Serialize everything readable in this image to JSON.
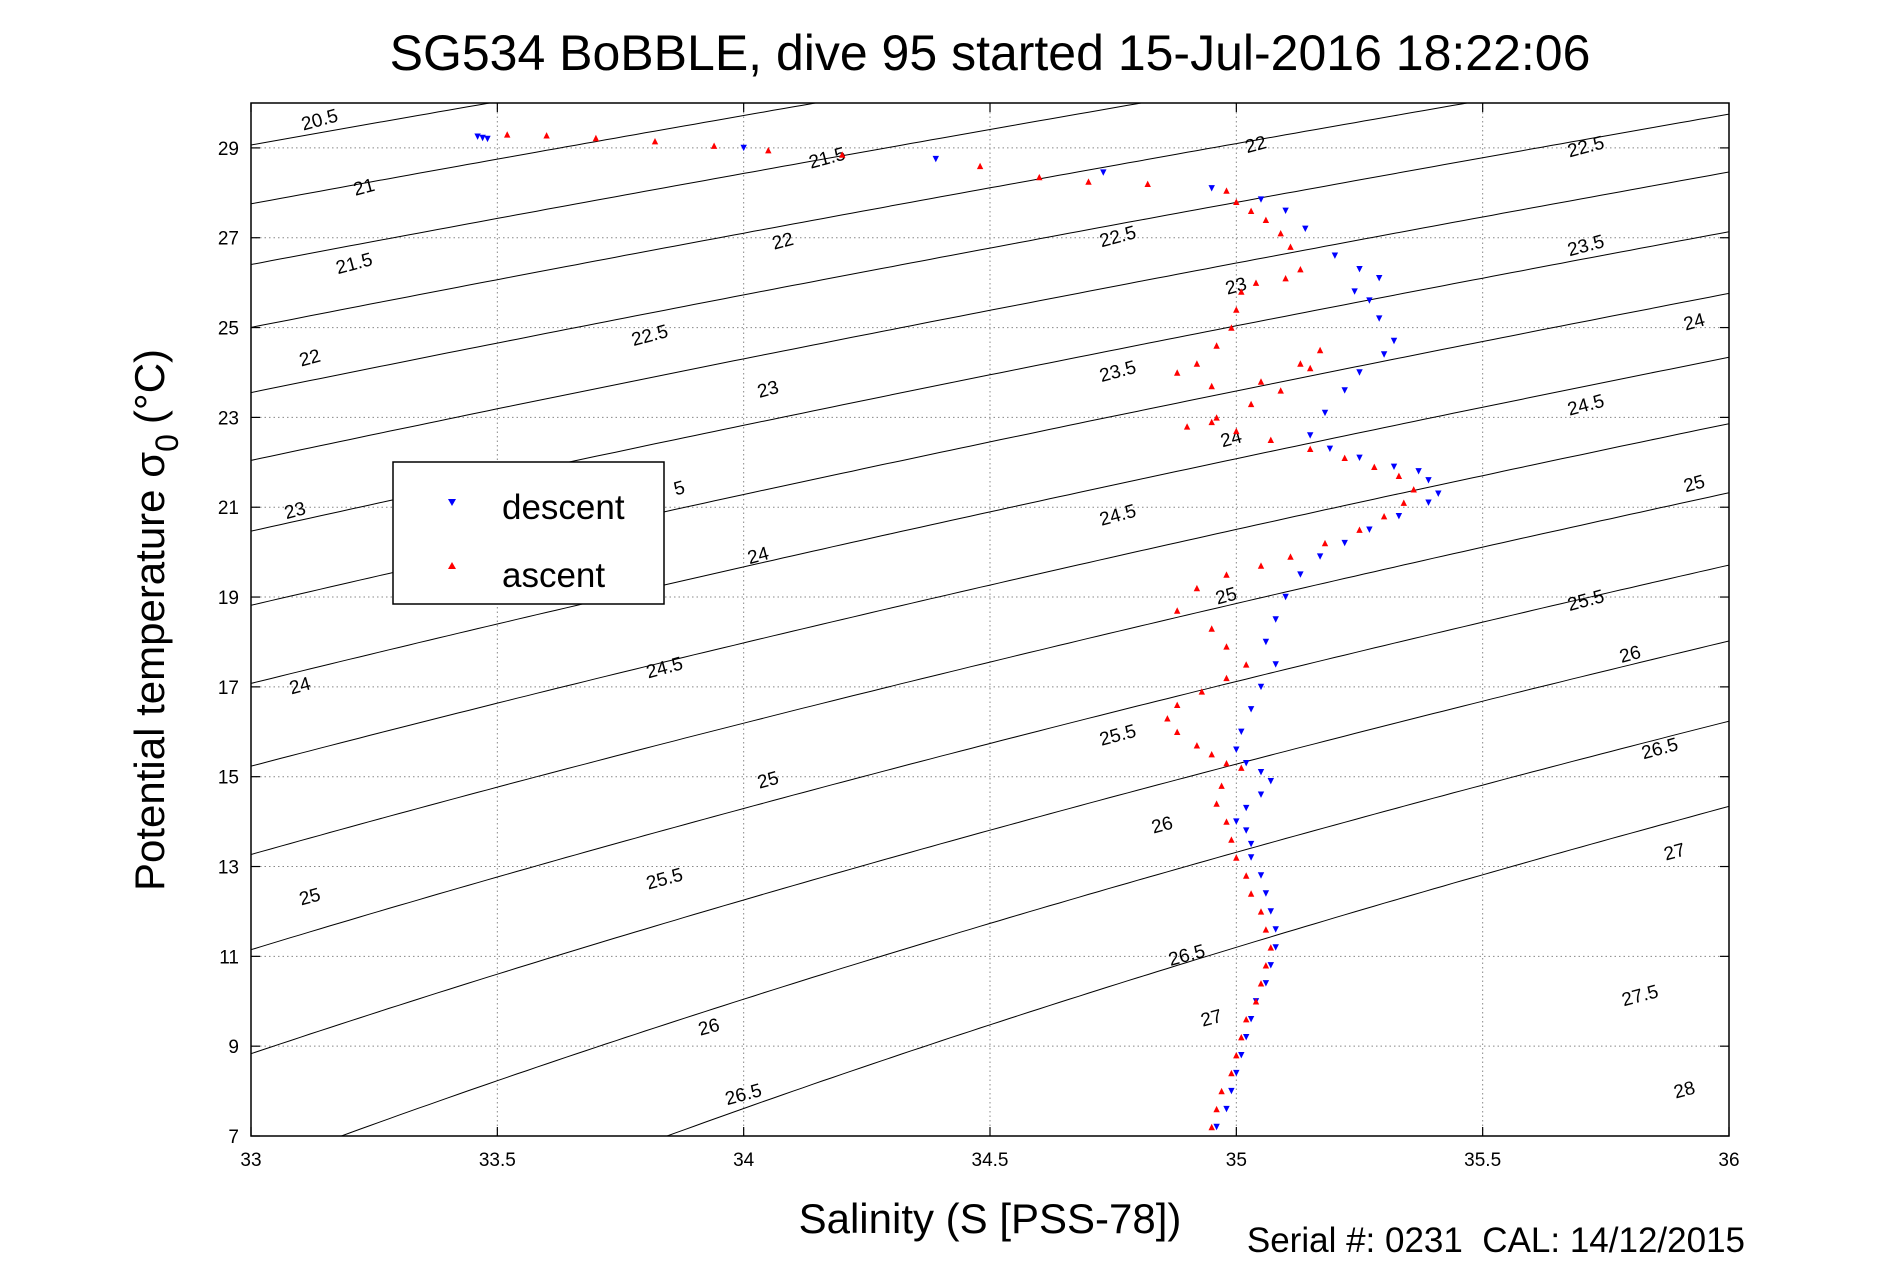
{
  "chart_data": {
    "type": "scatter",
    "title": "SG534 BoBBLE, dive 95 started 15-Jul-2016 18:22:06",
    "xlabel": "Salinity (S [PSS-78])",
    "ylabel_main": "Potential temperature σ",
    "ylabel_sub": "0",
    "ylabel_unit": "(°C)",
    "xlim": [
      33,
      36
    ],
    "ylim": [
      7,
      30
    ],
    "x_ticks": [
      33,
      33.5,
      34,
      34.5,
      35,
      35.5,
      36
    ],
    "x_tick_labels": [
      "33",
      "33.5",
      "34",
      "34.5",
      "35",
      "35.5",
      "36"
    ],
    "y_ticks": [
      7,
      9,
      11,
      13,
      15,
      17,
      19,
      21,
      23,
      25,
      27,
      29
    ],
    "y_tick_labels": [
      "7",
      "9",
      "11",
      "13",
      "15",
      "17",
      "19",
      "21",
      "23",
      "25",
      "27",
      "29"
    ],
    "grid": true,
    "legend_position": "left-middle",
    "series": [
      {
        "name": "descent",
        "color": "#0000ff",
        "marker": "triangle-down",
        "points": [
          [
            33.46,
            29.25
          ],
          [
            33.47,
            29.22
          ],
          [
            33.48,
            29.2
          ],
          [
            34.0,
            29.0
          ],
          [
            34.39,
            28.75
          ],
          [
            34.73,
            28.45
          ],
          [
            34.95,
            28.1
          ],
          [
            35.05,
            27.85
          ],
          [
            35.1,
            27.6
          ],
          [
            35.14,
            27.2
          ],
          [
            35.2,
            26.6
          ],
          [
            35.25,
            26.3
          ],
          [
            35.29,
            26.1
          ],
          [
            35.24,
            25.8
          ],
          [
            35.27,
            25.6
          ],
          [
            35.29,
            25.2
          ],
          [
            35.32,
            24.7
          ],
          [
            35.3,
            24.4
          ],
          [
            35.25,
            24.0
          ],
          [
            35.22,
            23.6
          ],
          [
            35.18,
            23.1
          ],
          [
            35.15,
            22.6
          ],
          [
            35.19,
            22.3
          ],
          [
            35.25,
            22.1
          ],
          [
            35.32,
            21.9
          ],
          [
            35.37,
            21.8
          ],
          [
            35.39,
            21.6
          ],
          [
            35.41,
            21.3
          ],
          [
            35.39,
            21.1
          ],
          [
            35.33,
            20.8
          ],
          [
            35.27,
            20.5
          ],
          [
            35.22,
            20.2
          ],
          [
            35.17,
            19.9
          ],
          [
            35.13,
            19.5
          ],
          [
            35.1,
            19.0
          ],
          [
            35.08,
            18.5
          ],
          [
            35.06,
            18.0
          ],
          [
            35.08,
            17.5
          ],
          [
            35.05,
            17.0
          ],
          [
            35.03,
            16.5
          ],
          [
            35.01,
            16.0
          ],
          [
            35.0,
            15.6
          ],
          [
            35.02,
            15.3
          ],
          [
            35.05,
            15.1
          ],
          [
            35.07,
            14.9
          ],
          [
            35.05,
            14.6
          ],
          [
            35.02,
            14.3
          ],
          [
            35.0,
            14.0
          ],
          [
            35.02,
            13.8
          ],
          [
            35.03,
            13.5
          ],
          [
            35.03,
            13.2
          ],
          [
            35.05,
            12.8
          ],
          [
            35.06,
            12.4
          ],
          [
            35.07,
            12.0
          ],
          [
            35.08,
            11.6
          ],
          [
            35.08,
            11.2
          ],
          [
            35.07,
            10.8
          ],
          [
            35.06,
            10.4
          ],
          [
            35.04,
            10.0
          ],
          [
            35.03,
            9.6
          ],
          [
            35.02,
            9.2
          ],
          [
            35.01,
            8.8
          ],
          [
            35.0,
            8.4
          ],
          [
            34.99,
            8.0
          ],
          [
            34.98,
            7.6
          ],
          [
            34.96,
            7.2
          ]
        ]
      },
      {
        "name": "ascent",
        "color": "#ff0000",
        "marker": "triangle-up",
        "points": [
          [
            33.52,
            29.3
          ],
          [
            33.6,
            29.28
          ],
          [
            33.7,
            29.22
          ],
          [
            33.82,
            29.15
          ],
          [
            33.94,
            29.05
          ],
          [
            34.05,
            28.95
          ],
          [
            34.2,
            28.85
          ],
          [
            34.48,
            28.6
          ],
          [
            34.6,
            28.35
          ],
          [
            34.7,
            28.25
          ],
          [
            34.82,
            28.2
          ],
          [
            34.98,
            28.05
          ],
          [
            35.0,
            27.8
          ],
          [
            35.03,
            27.6
          ],
          [
            35.06,
            27.4
          ],
          [
            35.09,
            27.1
          ],
          [
            35.11,
            26.8
          ],
          [
            35.13,
            26.3
          ],
          [
            35.1,
            26.1
          ],
          [
            35.04,
            26.0
          ],
          [
            35.01,
            25.8
          ],
          [
            35.0,
            25.4
          ],
          [
            34.99,
            25.0
          ],
          [
            34.96,
            24.6
          ],
          [
            34.92,
            24.2
          ],
          [
            34.88,
            24.0
          ],
          [
            34.95,
            23.7
          ],
          [
            35.05,
            23.8
          ],
          [
            35.13,
            24.2
          ],
          [
            35.17,
            24.5
          ],
          [
            35.15,
            24.1
          ],
          [
            35.09,
            23.6
          ],
          [
            35.03,
            23.3
          ],
          [
            34.96,
            23.0
          ],
          [
            34.9,
            22.8
          ],
          [
            34.95,
            22.9
          ],
          [
            35.0,
            22.7
          ],
          [
            35.07,
            22.5
          ],
          [
            35.15,
            22.3
          ],
          [
            35.22,
            22.1
          ],
          [
            35.28,
            21.9
          ],
          [
            35.33,
            21.7
          ],
          [
            35.36,
            21.4
          ],
          [
            35.34,
            21.1
          ],
          [
            35.3,
            20.8
          ],
          [
            35.25,
            20.5
          ],
          [
            35.18,
            20.2
          ],
          [
            35.11,
            19.9
          ],
          [
            35.05,
            19.7
          ],
          [
            34.98,
            19.5
          ],
          [
            34.92,
            19.2
          ],
          [
            34.88,
            18.7
          ],
          [
            34.95,
            18.3
          ],
          [
            34.98,
            17.9
          ],
          [
            35.02,
            17.5
          ],
          [
            34.98,
            17.2
          ],
          [
            34.93,
            16.9
          ],
          [
            34.88,
            16.6
          ],
          [
            34.86,
            16.3
          ],
          [
            34.88,
            16.0
          ],
          [
            34.92,
            15.7
          ],
          [
            34.95,
            15.5
          ],
          [
            34.98,
            15.3
          ],
          [
            35.01,
            15.2
          ],
          [
            34.97,
            14.8
          ],
          [
            34.96,
            14.4
          ],
          [
            34.98,
            14.0
          ],
          [
            34.99,
            13.6
          ],
          [
            35.0,
            13.2
          ],
          [
            35.02,
            12.8
          ],
          [
            35.03,
            12.4
          ],
          [
            35.05,
            12.0
          ],
          [
            35.06,
            11.6
          ],
          [
            35.07,
            11.2
          ],
          [
            35.06,
            10.8
          ],
          [
            35.05,
            10.4
          ],
          [
            35.04,
            10.0
          ],
          [
            35.02,
            9.6
          ],
          [
            35.01,
            9.2
          ],
          [
            35.0,
            8.8
          ],
          [
            34.99,
            8.4
          ],
          [
            34.97,
            8.0
          ],
          [
            34.96,
            7.6
          ],
          [
            34.95,
            7.2
          ]
        ]
      }
    ],
    "isopycnals": {
      "description_labels_shown": true,
      "levels": [
        20.5,
        21,
        21.5,
        22,
        22.5,
        23,
        23.5,
        24,
        24.5,
        25,
        25.5,
        26,
        26.5,
        27,
        27.5,
        28
      ],
      "labels": [
        {
          "text": "20.5",
          "s": 33.14,
          "t": 29.6
        },
        {
          "text": "21",
          "s": 33.23,
          "t": 28.1
        },
        {
          "text": "21.5",
          "s": 33.21,
          "t": 26.4
        },
        {
          "text": "22",
          "s": 33.12,
          "t": 24.3
        },
        {
          "text": "23",
          "s": 33.09,
          "t": 20.9
        },
        {
          "text": "24",
          "s": 33.1,
          "t": 17.0
        },
        {
          "text": "25",
          "s": 33.12,
          "t": 12.3
        },
        {
          "text": "21.5",
          "s": 34.17,
          "t": 28.75
        },
        {
          "text": "22",
          "s": 34.08,
          "t": 26.9
        },
        {
          "text": "22.5",
          "s": 33.81,
          "t": 24.8
        },
        {
          "text": "23",
          "s": 34.05,
          "t": 23.6
        },
        {
          "text": "5",
          "s": 33.87,
          "t": 21.4
        },
        {
          "text": "24",
          "s": 34.03,
          "t": 19.9
        },
        {
          "text": "24.5",
          "s": 33.84,
          "t": 17.4
        },
        {
          "text": "25",
          "s": 34.05,
          "t": 14.9
        },
        {
          "text": "25.5",
          "s": 33.84,
          "t": 12.7
        },
        {
          "text": "26",
          "s": 33.93,
          "t": 9.4
        },
        {
          "text": "26.5",
          "s": 34.0,
          "t": 7.9
        },
        {
          "text": "22",
          "s": 35.04,
          "t": 29.05
        },
        {
          "text": "22.5",
          "s": 34.76,
          "t": 27.0
        },
        {
          "text": "23",
          "s": 35.0,
          "t": 25.9
        },
        {
          "text": "23.5",
          "s": 34.76,
          "t": 24.0
        },
        {
          "text": "24",
          "s": 34.99,
          "t": 22.5
        },
        {
          "text": "24.5",
          "s": 34.76,
          "t": 20.8
        },
        {
          "text": "25",
          "s": 34.98,
          "t": 19.0
        },
        {
          "text": "25.5",
          "s": 34.76,
          "t": 15.9
        },
        {
          "text": "26",
          "s": 34.85,
          "t": 13.9
        },
        {
          "text": "26.5",
          "s": 34.9,
          "t": 11.0
        },
        {
          "text": "27",
          "s": 34.95,
          "t": 9.6
        },
        {
          "text": "22.5",
          "s": 35.71,
          "t": 29.0
        },
        {
          "text": "23.5",
          "s": 35.71,
          "t": 26.8
        },
        {
          "text": "24",
          "s": 35.93,
          "t": 25.1
        },
        {
          "text": "24.5",
          "s": 35.71,
          "t": 23.25
        },
        {
          "text": "25",
          "s": 35.93,
          "t": 21.5
        },
        {
          "text": "25.5",
          "s": 35.71,
          "t": 18.9
        },
        {
          "text": "26",
          "s": 35.8,
          "t": 17.7
        },
        {
          "text": "26.5",
          "s": 35.86,
          "t": 15.6
        },
        {
          "text": "27",
          "s": 35.89,
          "t": 13.3
        },
        {
          "text": "27.5",
          "s": 35.82,
          "t": 10.1
        },
        {
          "text": "28",
          "s": 35.91,
          "t": 8.0
        }
      ]
    },
    "legend": {
      "entries": [
        {
          "label": "descent",
          "color": "#0000ff",
          "marker": "triangle-down"
        },
        {
          "label": "ascent",
          "color": "#ff0000",
          "marker": "triangle-up"
        }
      ]
    }
  },
  "footer": {
    "text": "Serial #: 0231  CAL: 14/12/2015"
  }
}
